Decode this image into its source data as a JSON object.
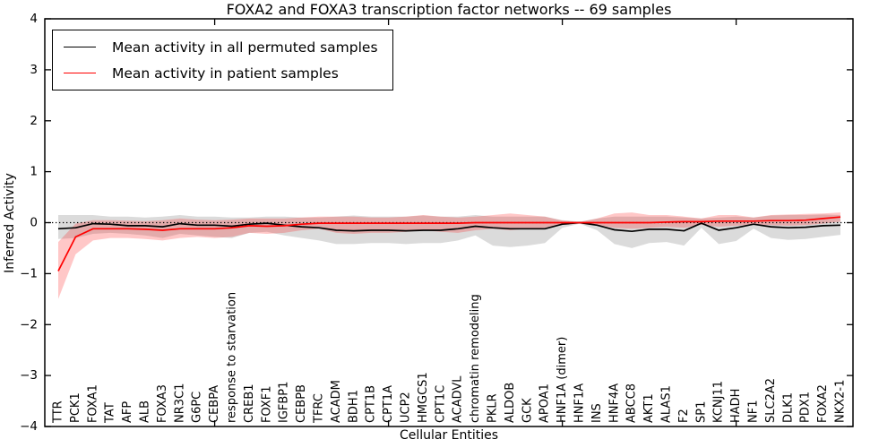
{
  "chart_data": {
    "type": "line",
    "title": "FOXA2 and FOXA3 transcription factor networks -- 69 samples",
    "xlabel": "Cellular Entities",
    "ylabel": "Inferred Activity",
    "ylim": [
      -4,
      4
    ],
    "yticks": [
      -4,
      -3,
      -2,
      -1,
      0,
      1,
      2,
      3,
      4
    ],
    "x_axis_numeric_ticks_at_category_index": [
      9,
      19,
      29,
      39
    ],
    "grid": false,
    "zero_reference_line": {
      "y": 0,
      "style": "dotted",
      "color": "#000000"
    },
    "legend_position": "upper-left",
    "categories": [
      "TTR",
      "PCK1",
      "FOXA1",
      "TAT",
      "AFP",
      "ALB",
      "FOXA3",
      "NR3C1",
      "G6PC",
      "CEBPA",
      "response to starvation",
      "CREB1",
      "FOXF1",
      "IGFBP1",
      "CEBPB",
      "TFRC",
      "ACADM",
      "BDH1",
      "CPT1B",
      "CPT1A",
      "UCP2",
      "HMGCS1",
      "CPT1C",
      "ACADVL",
      "chromatin remodeling",
      "PKLR",
      "ALDOB",
      "GCK",
      "APOA1",
      "HNF1A (dimer)",
      "HNF1A",
      "INS",
      "HNF4A",
      "ABCC8",
      "AKT1",
      "ALAS1",
      "F2",
      "SP1",
      "KCNJ11",
      "HADH",
      "NF1",
      "SLC2A2",
      "DLK1",
      "PDX1",
      "FOXA2",
      "NKX2-1"
    ],
    "series": [
      {
        "id": "permuted-samples",
        "name": "Mean activity in all permuted samples",
        "color": "#000000",
        "band_color": "rgba(0,0,0,0.14)",
        "values": [
          -0.12,
          -0.1,
          -0.02,
          -0.03,
          -0.06,
          -0.06,
          -0.08,
          -0.02,
          -0.05,
          -0.05,
          -0.07,
          -0.03,
          -0.01,
          -0.05,
          -0.08,
          -0.1,
          -0.15,
          -0.16,
          -0.15,
          -0.15,
          -0.16,
          -0.15,
          -0.15,
          -0.12,
          -0.07,
          -0.1,
          -0.12,
          -0.12,
          -0.12,
          -0.03,
          0.0,
          -0.05,
          -0.14,
          -0.17,
          -0.13,
          -0.13,
          -0.16,
          -0.01,
          -0.15,
          -0.1,
          -0.03,
          -0.08,
          -0.1,
          -0.09,
          -0.06,
          -0.05
        ],
        "band_lower": [
          -0.32,
          -0.3,
          -0.22,
          -0.2,
          -0.22,
          -0.25,
          -0.3,
          -0.22,
          -0.25,
          -0.28,
          -0.3,
          -0.2,
          -0.18,
          -0.25,
          -0.3,
          -0.35,
          -0.42,
          -0.42,
          -0.4,
          -0.4,
          -0.42,
          -0.4,
          -0.4,
          -0.35,
          -0.25,
          -0.45,
          -0.48,
          -0.45,
          -0.4,
          -0.1,
          -0.02,
          -0.15,
          -0.42,
          -0.5,
          -0.4,
          -0.38,
          -0.45,
          -0.1,
          -0.42,
          -0.36,
          -0.12,
          -0.3,
          -0.34,
          -0.32,
          -0.28,
          -0.24
        ],
        "band_upper": [
          0.15,
          0.15,
          0.15,
          0.12,
          0.12,
          0.1,
          0.12,
          0.15,
          0.12,
          0.12,
          0.1,
          0.1,
          0.12,
          0.12,
          0.1,
          0.1,
          0.12,
          0.14,
          0.12,
          0.12,
          0.12,
          0.14,
          0.12,
          0.12,
          0.15,
          0.12,
          0.12,
          0.12,
          0.12,
          0.05,
          0.02,
          0.08,
          0.12,
          0.12,
          0.12,
          0.12,
          0.1,
          0.08,
          0.1,
          0.12,
          0.1,
          0.14,
          0.15,
          0.15,
          0.16,
          0.15
        ]
      },
      {
        "id": "patient-samples",
        "name": "Mean activity in patient samples",
        "color": "#ff0000",
        "band_color": "rgba(255,0,0,0.22)",
        "values": [
          -0.95,
          -0.28,
          -0.12,
          -0.12,
          -0.12,
          -0.13,
          -0.15,
          -0.12,
          -0.12,
          -0.12,
          -0.1,
          -0.06,
          -0.07,
          -0.06,
          -0.03,
          -0.01,
          -0.01,
          -0.01,
          -0.01,
          -0.01,
          -0.01,
          -0.01,
          -0.01,
          -0.01,
          0.0,
          0.0,
          0.0,
          0.0,
          0.0,
          0.0,
          0.0,
          0.0,
          0.0,
          0.0,
          0.0,
          0.01,
          0.02,
          0.02,
          0.03,
          0.03,
          0.03,
          0.04,
          0.04,
          0.05,
          0.08,
          0.11
        ],
        "band_lower": [
          -1.5,
          -0.62,
          -0.35,
          -0.3,
          -0.3,
          -0.32,
          -0.35,
          -0.3,
          -0.28,
          -0.3,
          -0.28,
          -0.2,
          -0.22,
          -0.2,
          -0.15,
          -0.12,
          -0.2,
          -0.22,
          -0.2,
          -0.2,
          -0.18,
          -0.15,
          -0.18,
          -0.2,
          -0.15,
          -0.12,
          -0.15,
          -0.12,
          -0.1,
          -0.03,
          -0.01,
          -0.05,
          -0.1,
          -0.12,
          -0.1,
          -0.08,
          -0.1,
          -0.04,
          -0.08,
          -0.06,
          -0.04,
          -0.05,
          -0.06,
          -0.05,
          -0.02,
          0.02
        ],
        "band_upper": [
          -0.38,
          -0.02,
          0.05,
          0.05,
          0.04,
          0.03,
          0.05,
          0.08,
          0.06,
          0.05,
          0.06,
          0.08,
          0.08,
          0.08,
          0.1,
          0.12,
          0.12,
          0.12,
          0.1,
          0.1,
          0.12,
          0.15,
          0.12,
          0.1,
          0.12,
          0.15,
          0.18,
          0.15,
          0.12,
          0.04,
          0.01,
          0.08,
          0.18,
          0.2,
          0.15,
          0.15,
          0.12,
          0.08,
          0.15,
          0.15,
          0.1,
          0.15,
          0.16,
          0.17,
          0.18,
          0.2
        ]
      }
    ]
  }
}
